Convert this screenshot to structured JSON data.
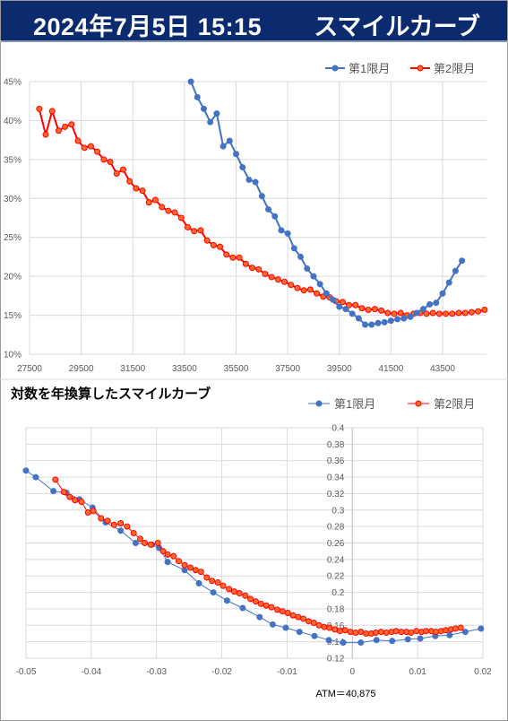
{
  "banner": {
    "date": "2024年7月5日 15:15",
    "title": "スマイルカーブ"
  },
  "colors": {
    "banner_bg": "#0c2a6e",
    "series1": "#4472c4",
    "series2": "#ff0000",
    "series2_fill": "#ff6a2a",
    "grid": "#d9d9d9"
  },
  "chart_data": [
    {
      "type": "line",
      "title": "",
      "xlabel": "",
      "ylabel": "",
      "xlim": [
        27500,
        45200
      ],
      "ylim": [
        10,
        45
      ],
      "x_ticks": [
        27500,
        29500,
        31500,
        33500,
        35500,
        37500,
        39500,
        41500,
        43500
      ],
      "x_tick_labels": [
        "27500",
        "29500",
        "31500",
        "33500",
        "35500",
        "37500",
        "39500",
        "41500",
        "43500"
      ],
      "y_ticks": [
        10,
        15,
        20,
        25,
        30,
        35,
        40,
        45
      ],
      "y_tick_labels": [
        "10%",
        "15%",
        "20%",
        "25%",
        "30%",
        "35%",
        "40%",
        "45%"
      ],
      "grid": true,
      "legend_position": "top-right",
      "series": [
        {
          "name": "第1限月",
          "x": [
            33750,
            34000,
            34250,
            34500,
            34750,
            35000,
            35250,
            35500,
            35750,
            36000,
            36250,
            36500,
            36750,
            37000,
            37250,
            37500,
            37750,
            38000,
            38250,
            38500,
            38750,
            39000,
            39250,
            39500,
            39750,
            40000,
            40250,
            40500,
            40750,
            41000,
            41250,
            41500,
            41750,
            42000,
            42250,
            42500,
            42750,
            43000,
            43250,
            43500,
            43750,
            44000,
            44250
          ],
          "y": [
            45.0,
            43.0,
            41.5,
            39.8,
            40.9,
            36.7,
            37.4,
            35.7,
            34.0,
            32.4,
            32.1,
            30.3,
            28.6,
            27.7,
            25.9,
            25.5,
            23.6,
            22.5,
            21.0,
            20.0,
            19.0,
            17.8,
            17.0,
            16.1,
            15.8,
            15.2,
            14.6,
            13.8,
            13.8,
            14.0,
            14.1,
            14.3,
            14.5,
            14.6,
            14.8,
            15.3,
            15.8,
            16.4,
            16.6,
            17.8,
            19.2,
            20.7,
            22.0
          ]
        },
        {
          "name": "第2限月",
          "x": [
            27875,
            28125,
            28375,
            28625,
            28875,
            29125,
            29375,
            29625,
            29875,
            30125,
            30375,
            30625,
            30875,
            31125,
            31375,
            31625,
            31875,
            32125,
            32375,
            32625,
            32875,
            33125,
            33375,
            33625,
            33875,
            34125,
            34375,
            34625,
            34875,
            35125,
            35375,
            35625,
            35875,
            36125,
            36375,
            36625,
            36875,
            37125,
            37375,
            37625,
            37875,
            38125,
            38375,
            38625,
            38875,
            39125,
            39375,
            39625,
            39875,
            40125,
            40375,
            40625,
            40875,
            41125,
            41375,
            41625,
            41875,
            42125,
            42375,
            42625,
            42875,
            43125,
            43375,
            43625,
            43875,
            44125,
            44375,
            44625,
            44875,
            45125
          ],
          "y": [
            41.5,
            38.2,
            41.2,
            38.7,
            39.2,
            39.5,
            37.4,
            36.5,
            36.7,
            36.0,
            35.0,
            34.7,
            33.2,
            33.7,
            32.2,
            31.3,
            31.0,
            29.5,
            29.8,
            28.9,
            28.4,
            28.2,
            27.5,
            26.3,
            25.8,
            25.9,
            24.6,
            24.0,
            23.8,
            22.8,
            22.4,
            22.4,
            21.6,
            21.1,
            20.9,
            20.3,
            19.9,
            19.6,
            19.3,
            18.9,
            18.5,
            18.2,
            18.3,
            17.8,
            17.4,
            17.3,
            16.8,
            16.7,
            16.3,
            16.3,
            15.9,
            15.7,
            15.8,
            15.6,
            15.3,
            15.2,
            15.3,
            15.0,
            15.2,
            15.3,
            15.2,
            15.3,
            15.2,
            15.2,
            15.2,
            15.3,
            15.3,
            15.4,
            15.5,
            15.7
          ]
        }
      ]
    },
    {
      "type": "scatter",
      "title": "対数を年換算したスマイルカーブ",
      "xlabel": "",
      "ylabel": "",
      "xlim": [
        -0.05,
        0.02
      ],
      "ylim": [
        0.12,
        0.4
      ],
      "x_ticks": [
        -0.05,
        -0.04,
        -0.03,
        -0.02,
        -0.01,
        0,
        0.01,
        0.02
      ],
      "x_tick_labels": [
        "-0.05",
        "-0.04",
        "-0.03",
        "-0.02",
        "-0.01",
        "0",
        "0.01",
        "0.02"
      ],
      "y_ticks": [
        0.12,
        0.14,
        0.16,
        0.18,
        0.2,
        0.22,
        0.24,
        0.26,
        0.28,
        0.3,
        0.32,
        0.34,
        0.36,
        0.38,
        0.4
      ],
      "y_tick_labels": [
        "0.12",
        "0.14",
        "0.16",
        "0.18",
        "0.2",
        "0.22",
        "0.24",
        "0.26",
        "0.28",
        "0.3",
        "0.32",
        "0.34",
        "0.36",
        "0.38",
        "0.4"
      ],
      "grid": true,
      "legend_position": "top-right",
      "annotation": "ATM＝40,875",
      "series": [
        {
          "name": "第1限月",
          "x": [
            -0.05,
            -0.0485,
            -0.0458,
            -0.0438,
            -0.0418,
            -0.0398,
            -0.0378,
            -0.0355,
            -0.0332,
            -0.0307,
            -0.0296,
            -0.0283,
            -0.0257,
            -0.0235,
            -0.0213,
            -0.0192,
            -0.0168,
            -0.0142,
            -0.0122,
            -0.0102,
            -0.0081,
            -0.0058,
            -0.0036,
            -0.0014,
            0.0013,
            0.0037,
            0.0061,
            0.0085,
            0.0104,
            0.0127,
            0.0149,
            0.0173,
            0.0197
          ],
          "y": [
            0.348,
            0.34,
            0.323,
            0.321,
            0.313,
            0.303,
            0.285,
            0.275,
            0.26,
            0.258,
            0.254,
            0.237,
            0.227,
            0.211,
            0.2,
            0.19,
            0.181,
            0.17,
            0.161,
            0.157,
            0.152,
            0.147,
            0.142,
            0.139,
            0.139,
            0.142,
            0.141,
            0.143,
            0.144,
            0.147,
            0.148,
            0.152,
            0.156
          ]
        },
        {
          "name": "第2限月",
          "x": [
            -0.0455,
            -0.0442,
            -0.0433,
            -0.0425,
            -0.0415,
            -0.0405,
            -0.0397,
            -0.0385,
            -0.0375,
            -0.0365,
            -0.0355,
            -0.0345,
            -0.0335,
            -0.0325,
            -0.0318,
            -0.0309,
            -0.0298,
            -0.029,
            -0.0283,
            -0.0274,
            -0.0266,
            -0.0257,
            -0.0248,
            -0.024,
            -0.0232,
            -0.0223,
            -0.0215,
            -0.0206,
            -0.0198,
            -0.0189,
            -0.0181,
            -0.0173,
            -0.0164,
            -0.0156,
            -0.0148,
            -0.014,
            -0.0132,
            -0.0124,
            -0.0115,
            -0.0107,
            -0.0099,
            -0.0091,
            -0.0083,
            -0.0075,
            -0.0067,
            -0.0059,
            -0.0051,
            -0.0043,
            -0.0035,
            -0.0027,
            -0.0019,
            -0.0011,
            -0.0003,
            0.0005,
            0.0013,
            0.0021,
            0.0029,
            0.0036,
            0.0044,
            0.0052,
            0.006,
            0.0067,
            0.0075,
            0.0083,
            0.009,
            0.0098,
            0.0106,
            0.0113,
            0.0121,
            0.0128,
            0.0136,
            0.0143,
            0.0151,
            0.0158,
            0.0166
          ],
          "y": [
            0.337,
            0.322,
            0.316,
            0.312,
            0.31,
            0.297,
            0.299,
            0.29,
            0.287,
            0.282,
            0.284,
            0.28,
            0.272,
            0.265,
            0.26,
            0.258,
            0.26,
            0.25,
            0.246,
            0.244,
            0.238,
            0.233,
            0.23,
            0.227,
            0.225,
            0.218,
            0.214,
            0.212,
            0.208,
            0.204,
            0.201,
            0.199,
            0.196,
            0.192,
            0.189,
            0.186,
            0.184,
            0.182,
            0.179,
            0.177,
            0.175,
            0.172,
            0.17,
            0.168,
            0.165,
            0.163,
            0.16,
            0.158,
            0.157,
            0.155,
            0.153,
            0.154,
            0.152,
            0.151,
            0.152,
            0.15,
            0.15,
            0.151,
            0.152,
            0.151,
            0.152,
            0.153,
            0.152,
            0.152,
            0.151,
            0.153,
            0.152,
            0.153,
            0.153,
            0.152,
            0.153,
            0.154,
            0.155,
            0.156,
            0.157
          ]
        }
      ]
    }
  ]
}
